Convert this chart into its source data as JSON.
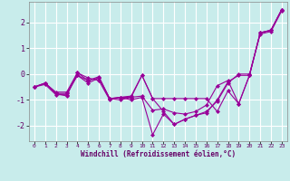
{
  "xlabel": "Windchill (Refroidissement éolien,°C)",
  "ylabel": "",
  "background_color": "#c8eceb",
  "grid_color": "#ffffff",
  "line_color": "#990099",
  "xlim": [
    -0.5,
    23.5
  ],
  "ylim": [
    -2.6,
    2.8
  ],
  "yticks": [
    -2,
    -1,
    0,
    1,
    2
  ],
  "xticks": [
    0,
    1,
    2,
    3,
    4,
    5,
    6,
    7,
    8,
    9,
    10,
    11,
    12,
    13,
    14,
    15,
    16,
    17,
    18,
    19,
    20,
    21,
    22,
    23
  ],
  "series": [
    [
      -0.5,
      -0.35,
      -0.7,
      -0.7,
      0.05,
      -0.15,
      -0.25,
      -1.0,
      -0.9,
      -1.0,
      -0.9,
      -2.35,
      -1.55,
      -1.95,
      -1.75,
      -1.6,
      -1.5,
      -1.0,
      -0.3,
      -0.05,
      -0.05,
      1.6,
      1.7,
      2.5
    ],
    [
      -0.5,
      -0.35,
      -0.75,
      -0.75,
      -0.05,
      -0.35,
      -0.15,
      -0.95,
      -1.0,
      -0.9,
      -0.85,
      -1.4,
      -1.35,
      -1.5,
      -1.55,
      -1.45,
      -1.2,
      -0.45,
      -0.25,
      -1.15,
      -0.05,
      1.6,
      1.7,
      2.5
    ],
    [
      -0.5,
      -0.35,
      -0.75,
      -0.85,
      0.05,
      -0.25,
      -0.1,
      -0.95,
      -0.9,
      -0.85,
      -0.05,
      -0.95,
      -0.95,
      -0.95,
      -0.95,
      -0.95,
      -0.95,
      -1.45,
      -0.65,
      -1.15,
      -0.05,
      1.6,
      1.7,
      2.5
    ],
    [
      -0.5,
      -0.4,
      -0.8,
      -0.8,
      -0.05,
      -0.25,
      -0.15,
      -0.95,
      -0.9,
      -0.9,
      -0.05,
      -0.95,
      -1.45,
      -1.95,
      -1.75,
      -1.6,
      -1.45,
      -1.05,
      -0.35,
      0.0,
      0.0,
      1.55,
      1.65,
      2.45
    ]
  ]
}
